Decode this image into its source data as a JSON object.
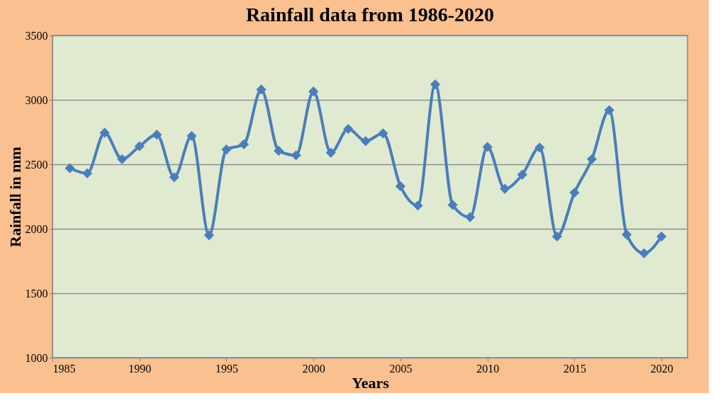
{
  "chart_data": {
    "type": "line",
    "title": "Rainfall data from 1986-2020",
    "xlabel": "Years",
    "ylabel": "Rainfall in mm",
    "x": [
      1986,
      1987,
      1988,
      1989,
      1990,
      1991,
      1992,
      1993,
      1994,
      1995,
      1996,
      1997,
      1998,
      1999,
      2000,
      2001,
      2002,
      2003,
      2004,
      2005,
      2006,
      2007,
      2008,
      2009,
      2010,
      2011,
      2012,
      2013,
      2014,
      2015,
      2016,
      2017,
      2018,
      2019,
      2020
    ],
    "series": [
      {
        "color": "#4a7ebb",
        "values": [
          2470,
          2430,
          2745,
          2540,
          2640,
          2730,
          2400,
          2720,
          1950,
          2615,
          2655,
          3080,
          2605,
          2570,
          3065,
          2590,
          2775,
          2680,
          2740,
          2330,
          2180,
          3120,
          2185,
          2090,
          2635,
          2310,
          2420,
          2630,
          1940,
          2280,
          2540,
          2920,
          1955,
          1810,
          1940
        ]
      }
    ],
    "xlim": [
      1985,
      2021.5
    ],
    "xticks": [
      1985,
      1990,
      1995,
      2000,
      2005,
      2010,
      2015,
      2020
    ],
    "ylim": [
      1000,
      3500
    ],
    "yticks": [
      1000,
      1500,
      2000,
      2500,
      3000,
      3500
    ],
    "grid": "y",
    "marker": "diamond",
    "line_style": "solid"
  }
}
